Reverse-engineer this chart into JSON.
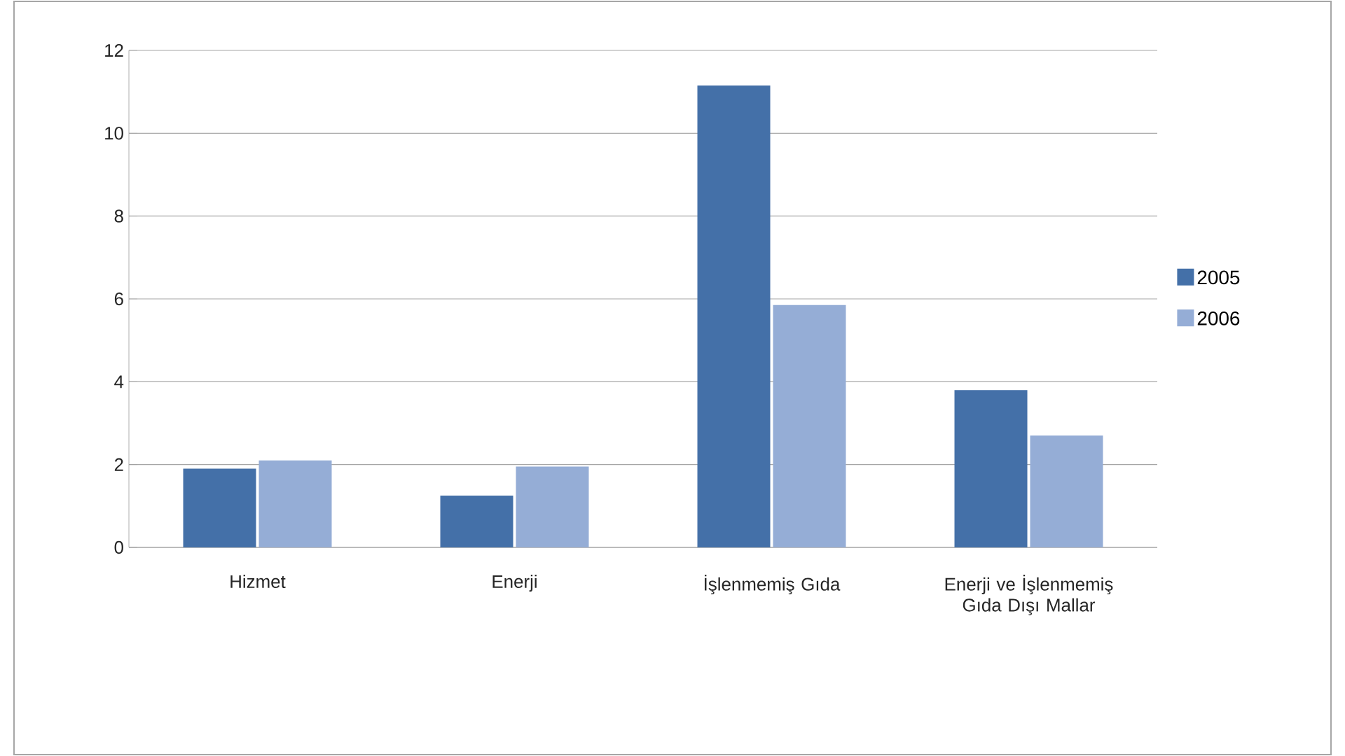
{
  "chart_data": {
    "type": "bar",
    "categories": [
      "Hizmet",
      "Enerji",
      "İşlenmemiş Gıda",
      "Enerji ve İşlenmemiş Gıda Dışı Mallar"
    ],
    "series": [
      {
        "name": "2005",
        "color": "#4470a8",
        "values": [
          1.9,
          1.25,
          11.15,
          3.8
        ]
      },
      {
        "name": "2006",
        "color": "#95add6",
        "values": [
          2.1,
          1.95,
          5.85,
          2.7
        ]
      }
    ],
    "ylim": [
      0,
      12
    ],
    "yticks": [
      0,
      2,
      4,
      6,
      8,
      10,
      12
    ],
    "grid": "y",
    "legend": "right"
  }
}
